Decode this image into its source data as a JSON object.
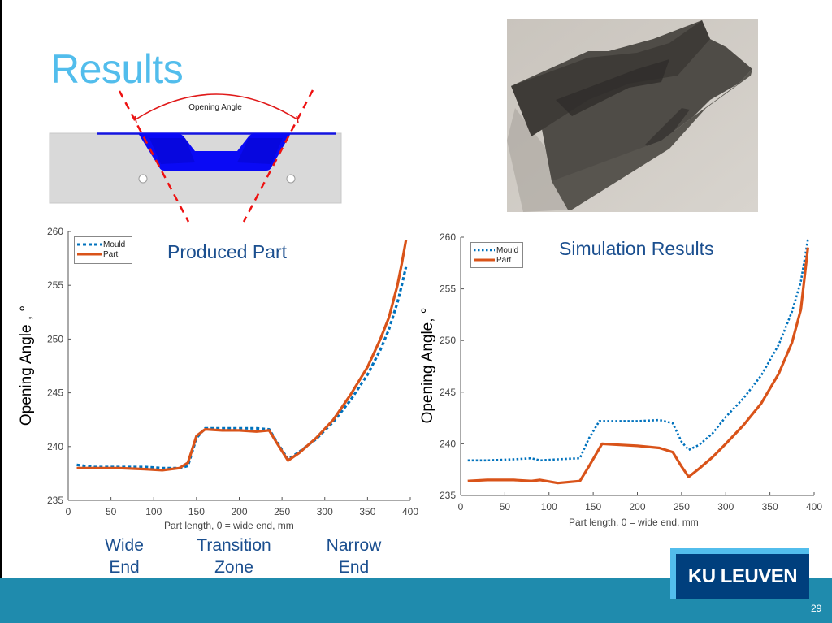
{
  "slide": {
    "title": "Results",
    "page_number": "29",
    "logo_text": "KU LEUVEN",
    "colors": {
      "title": "#52bdec",
      "subtitle": "#1b4f8f",
      "banner": "#1f8bad",
      "logo_frame": "#52bdec",
      "logo_box": "#003f7d",
      "mould": "#0072bd",
      "part": "#d95319"
    }
  },
  "diagram": {
    "label": "Opening Angle"
  },
  "photo": {
    "alt": "Produced composite part photo"
  },
  "zones": [
    {
      "line1": "Wide",
      "line2": "End"
    },
    {
      "line1": "Transition",
      "line2": "Zone"
    },
    {
      "line1": "Narrow",
      "line2": "End"
    }
  ],
  "chart_data": [
    {
      "type": "line",
      "title": "Produced Part",
      "xlabel": "Part length, 0 = wide end, mm",
      "ylabel": "Opening Angle , °",
      "xlim": [
        0,
        400
      ],
      "ylim": [
        235,
        260
      ],
      "xticks": [
        0,
        50,
        100,
        150,
        200,
        250,
        300,
        350,
        400
      ],
      "yticks": [
        235,
        240,
        245,
        250,
        255,
        260
      ],
      "grid": false,
      "legend_position": "top-left",
      "series": [
        {
          "name": "Mould",
          "style": "dotted",
          "x": [
            10,
            30,
            60,
            90,
            110,
            130,
            140,
            150,
            160,
            180,
            200,
            220,
            235,
            245,
            257,
            270,
            290,
            310,
            330,
            350,
            365,
            375,
            385,
            390,
            395
          ],
          "y": [
            238.3,
            238.1,
            238.1,
            238.1,
            238.0,
            238.0,
            238.2,
            240.8,
            241.7,
            241.7,
            241.7,
            241.7,
            241.6,
            240.3,
            238.8,
            239.5,
            240.7,
            242.3,
            244.3,
            246.7,
            249.0,
            250.9,
            253.4,
            255.0,
            256.7
          ]
        },
        {
          "name": "Part",
          "style": "solid",
          "x": [
            10,
            30,
            60,
            90,
            110,
            130,
            140,
            150,
            160,
            180,
            200,
            220,
            235,
            245,
            257,
            270,
            290,
            310,
            330,
            350,
            365,
            375,
            385,
            390,
            395
          ],
          "y": [
            238.0,
            238.0,
            238.0,
            237.9,
            237.8,
            238.0,
            238.5,
            241.0,
            241.6,
            241.5,
            241.5,
            241.4,
            241.5,
            240.2,
            238.7,
            239.4,
            240.8,
            242.5,
            244.8,
            247.4,
            250.0,
            252.0,
            255.0,
            257.0,
            259.2
          ]
        }
      ]
    },
    {
      "type": "line",
      "title": "Simulation Results",
      "xlabel": "Part length, 0 = wide end, mm",
      "ylabel": "Opening Angle, °",
      "xlim": [
        0,
        400
      ],
      "ylim": [
        235,
        260
      ],
      "xticks": [
        0,
        50,
        100,
        150,
        200,
        250,
        300,
        350,
        400
      ],
      "yticks": [
        235,
        240,
        245,
        250,
        255,
        260
      ],
      "grid": false,
      "legend_position": "top-left",
      "series": [
        {
          "name": "Mould",
          "style": "dotted",
          "x": [
            8,
            30,
            60,
            80,
            90,
            110,
            135,
            145,
            157,
            180,
            200,
            225,
            240,
            250,
            258,
            270,
            285,
            300,
            320,
            340,
            360,
            375,
            385,
            393
          ],
          "y": [
            238.4,
            238.4,
            238.5,
            238.6,
            238.4,
            238.5,
            238.6,
            240.5,
            242.2,
            242.2,
            242.2,
            242.3,
            242.0,
            240.2,
            239.4,
            239.9,
            241.0,
            242.6,
            244.4,
            246.6,
            249.6,
            252.8,
            255.7,
            259.8
          ]
        },
        {
          "name": "Part",
          "style": "solid",
          "x": [
            8,
            30,
            60,
            80,
            90,
            110,
            135,
            145,
            160,
            180,
            200,
            225,
            240,
            250,
            258,
            270,
            285,
            300,
            320,
            340,
            360,
            375,
            385,
            393
          ],
          "y": [
            236.4,
            236.5,
            236.5,
            236.4,
            236.5,
            236.2,
            236.4,
            237.8,
            240.0,
            239.9,
            239.8,
            239.6,
            239.2,
            237.8,
            236.8,
            237.6,
            238.7,
            240.0,
            241.8,
            243.9,
            246.8,
            249.8,
            253.0,
            259.0
          ]
        }
      ]
    }
  ]
}
